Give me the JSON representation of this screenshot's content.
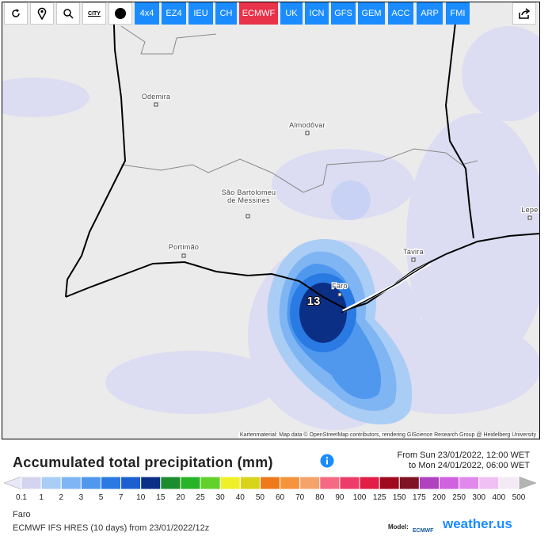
{
  "toolbar": {
    "city_button": "CITY",
    "models": [
      "4x4",
      "EZ4",
      "IEU",
      "CH",
      "ECMWF",
      "UK",
      "ICN",
      "GFS",
      "GEM",
      "ACC",
      "ARP",
      "FMI"
    ],
    "active_model": "ECMWF"
  },
  "map": {
    "places": [
      {
        "label_lines": [
          "Odemira"
        ]
      },
      {
        "label_lines": [
          "Almodôvar"
        ]
      },
      {
        "label_lines": [
          "São Bartolomeu",
          "de Messines"
        ]
      },
      {
        "label_lines": [
          "Portimão"
        ]
      },
      {
        "label_lines": [
          "Faro"
        ]
      },
      {
        "label_lines": [
          "Tavira"
        ]
      },
      {
        "label_lines": [
          "Lepe"
        ]
      }
    ],
    "point_value": 13,
    "attribution": "Kartenmaterial: Map data © OpenStreetMap contributors, rendering GIScience Research Group @ Heidelberg University"
  },
  "header": {
    "title": "Accumulated total precipitation (mm)",
    "from": "From Sun 23/01/2022, 12:00 WET",
    "to": "to Mon 24/01/2022, 06:00 WET"
  },
  "legend": {
    "ticks": [
      0.1,
      1,
      2,
      3,
      5,
      7,
      10,
      15,
      20,
      25,
      30,
      40,
      50,
      60,
      70,
      80,
      90,
      100,
      125,
      150,
      175,
      200,
      250,
      300,
      400,
      500
    ],
    "colors": [
      "#d4d4f0",
      "#aacdf5",
      "#7fb5f3",
      "#4f98ee",
      "#2a7ae4",
      "#1c5fd0",
      "#0c2f86",
      "#1c8c2c",
      "#28b428",
      "#62d22a",
      "#f0f02a",
      "#d8d41c",
      "#ee7a1a",
      "#f5943c",
      "#f6a36a",
      "#f46a82",
      "#ee3c6a",
      "#e01e46",
      "#a00a1e",
      "#801226",
      "#b042c0",
      "#d062e0",
      "#e288ec",
      "#f0c0f4",
      "#f4eaf6"
    ],
    "under_color": "#e8e8f8",
    "over_color": "#b4b4b4"
  },
  "footer": {
    "location": "Faro",
    "model_run": "ECMWF IFS HRES (10 days) from 23/01/2022/12z",
    "model_label": "Model:",
    "model_name": "ECMWF",
    "brand": "weather.us"
  }
}
